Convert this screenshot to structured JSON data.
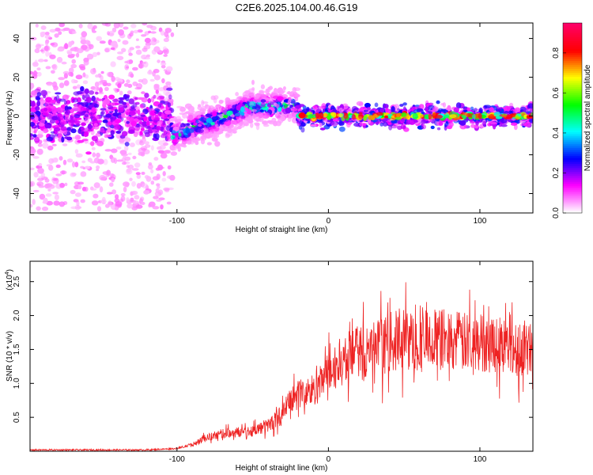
{
  "title": "C2E6.2025.104.00.46.G19",
  "chart_data": [
    {
      "type": "heatmap",
      "xlabel": "Height of straight line (km)",
      "ylabel": "Frequency (Hz)",
      "xlim": [
        -197,
        135
      ],
      "ylim": [
        -50,
        48
      ],
      "xticks": [
        -100,
        0,
        100
      ],
      "xtick_labels": [
        "-100",
        "0",
        "100"
      ],
      "yticks": [
        -40,
        -20,
        0,
        20,
        40
      ],
      "ytick_labels": [
        "-40",
        "-20",
        "0",
        "20",
        "40"
      ],
      "colorbar": {
        "label": "Normalized spectral amplitude",
        "range": [
          0,
          0.95
        ],
        "ticks": [
          0.0,
          0.2,
          0.4,
          0.6,
          0.8
        ],
        "tick_labels": [
          "0.0",
          "0.2",
          "0.4",
          "0.6",
          "0.8"
        ],
        "colors": [
          "#ffffff",
          "#ff00ff",
          "#0000ff",
          "#00ffff",
          "#00ff00",
          "#ffff00",
          "#ff0000",
          "#ff0066"
        ]
      },
      "features": [
        {
          "x_range": [
            -197,
            -103
          ],
          "frequency_spread": 48,
          "max_amplitude": 0.25
        },
        {
          "x_range": [
            -103,
            -20
          ],
          "frequency_center": [
            -10,
            5
          ],
          "max_amplitude": 0.5
        },
        {
          "x_range": [
            -20,
            135
          ],
          "frequency_center": 0,
          "max_amplitude": 0.9
        }
      ],
      "grid": false
    },
    {
      "type": "line",
      "xlabel": "Height of straight line (km)",
      "ylabel": "SNR (10 * v/v)",
      "multiplier_label": "(x10",
      "multiplier_exp": "4",
      "xlim": [
        -197,
        135
      ],
      "ylim": [
        0,
        2.8
      ],
      "xticks": [
        -100,
        0,
        100
      ],
      "xtick_labels": [
        "-100",
        "0",
        "100"
      ],
      "yticks": [
        0.5,
        1.0,
        1.5,
        2.0,
        2.5
      ],
      "ytick_labels": [
        "0.5",
        "1.0",
        "1.5",
        "2.0",
        "2.5"
      ],
      "series": [
        {
          "color": "#ee2222",
          "x": [
            -197,
            -180,
            -160,
            -140,
            -120,
            -110,
            -100,
            -90,
            -80,
            -70,
            -60,
            -50,
            -40,
            -30,
            -25,
            -20,
            -15,
            -10,
            -5,
            0,
            10,
            20,
            30,
            40,
            50,
            60,
            70,
            80,
            90,
            100,
            110,
            120,
            135
          ],
          "y": [
            0.02,
            0.02,
            0.02,
            0.02,
            0.02,
            0.03,
            0.04,
            0.1,
            0.2,
            0.26,
            0.28,
            0.3,
            0.38,
            0.55,
            0.75,
            0.85,
            0.85,
            0.9,
            1.0,
            1.15,
            1.35,
            1.45,
            1.5,
            1.6,
            1.65,
            1.6,
            1.65,
            1.65,
            1.6,
            1.6,
            1.6,
            1.55,
            1.5
          ]
        }
      ],
      "grid": false
    }
  ]
}
